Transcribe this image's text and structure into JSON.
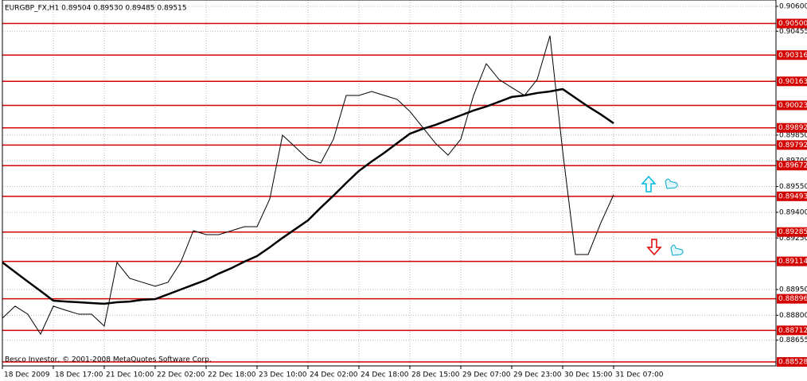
{
  "chart_data": {
    "type": "line",
    "title": "EURGBP_FX,H1  0.89504 0.89530 0.89485 0.89515",
    "copyright": "Besco Investor, © 2001-2008 MetaQuotes Software Corp.",
    "categories": [
      "18 Dec 2009",
      null,
      null,
      null,
      "18 Dec 17:00",
      null,
      null,
      null,
      "21 Dec 10:00",
      null,
      null,
      null,
      "22 Dec 02:00",
      null,
      null,
      null,
      "22 Dec 18:00",
      null,
      null,
      null,
      "23 Dec 10:00",
      null,
      null,
      null,
      "24 Dec 02:00",
      null,
      null,
      null,
      "24 Dec 18:00",
      null,
      null,
      null,
      "28 Dec 15:00",
      null,
      null,
      null,
      "29 Dec 07:00",
      null,
      null,
      null,
      "29 Dec 23:00",
      null,
      null,
      null,
      "30 Dec 15:00",
      null,
      null,
      null,
      "31 Dec 07:00"
    ],
    "series": [
      {
        "color": "#000000",
        "width": 1,
        "values": [
          0.88783,
          0.88853,
          0.88806,
          0.8869,
          0.88853,
          0.88829,
          0.88806,
          0.88806,
          0.88737,
          0.89108,
          0.89015,
          0.88992,
          0.88969,
          0.88992,
          0.89108,
          0.89293,
          0.8927,
          0.8927,
          0.89293,
          0.89316,
          0.89316,
          0.89478,
          0.89849,
          0.8978,
          0.8971,
          0.89687,
          0.89826,
          0.90081,
          0.90081,
          0.90104,
          0.90081,
          0.90058,
          0.89988,
          0.89896,
          0.89803,
          0.89733,
          0.89826,
          0.90081,
          0.90266,
          0.90174,
          0.90127,
          0.90081,
          0.90174,
          0.90429,
          0.89756,
          0.89154,
          0.89154,
          0.89339,
          0.89502
        ]
      },
      {
        "color": "#000000",
        "width": 2.5,
        "values": [
          0.89108,
          0.89052,
          0.88996,
          0.88941,
          0.88885,
          0.8888,
          0.88876,
          0.88871,
          0.88867,
          0.88876,
          0.8888,
          0.8889,
          0.88894,
          0.88922,
          0.8895,
          0.88978,
          0.89006,
          0.89043,
          0.89075,
          0.89112,
          0.89145,
          0.89196,
          0.89251,
          0.89302,
          0.89353,
          0.89427,
          0.89497,
          0.89571,
          0.89641,
          0.89696,
          0.89747,
          0.89803,
          0.89858,
          0.89886,
          0.89909,
          0.89937,
          0.89965,
          0.89993,
          0.90016,
          0.90044,
          0.90072,
          0.90081,
          0.90095,
          0.90104,
          0.90118,
          0.90067,
          0.90016,
          0.8997,
          0.89919
        ]
      }
    ],
    "ylim": [
      0.88505,
      0.90637
    ],
    "yticks": [
      {
        "value": 0.906,
        "label": "0.90600"
      },
      {
        "value": 0.90455,
        "label": "0.90455"
      },
      {
        "value": 0.8985,
        "label": "0.89850"
      },
      {
        "value": 0.897,
        "label": "0.89700"
      },
      {
        "value": 0.8955,
        "label": "0.89550"
      },
      {
        "value": 0.894,
        "label": "0.89400"
      },
      {
        "value": 0.8925,
        "label": "0.89250"
      },
      {
        "value": 0.8895,
        "label": "0.88950"
      },
      {
        "value": 0.888,
        "label": "0.88800"
      },
      {
        "value": 0.88655,
        "label": "0.88655"
      }
    ],
    "levels": [
      {
        "value": 0.905,
        "label": "0.90500"
      },
      {
        "value": 0.90316,
        "label": "0.90316"
      },
      {
        "value": 0.90163,
        "label": "0.90163"
      },
      {
        "value": 0.90023,
        "label": "0.90023"
      },
      {
        "value": 0.89892,
        "label": "0.89892"
      },
      {
        "value": 0.89792,
        "label": "0.89792"
      },
      {
        "value": 0.89672,
        "label": "0.89672"
      },
      {
        "value": 0.89493,
        "label": "0.89493"
      },
      {
        "value": 0.89285,
        "label": "0.89285"
      },
      {
        "value": 0.89114,
        "label": "0.89114"
      },
      {
        "value": 0.88896,
        "label": "0.88896"
      },
      {
        "value": 0.88712,
        "label": "0.88712"
      },
      {
        "value": 0.88528,
        "label": "0.88528"
      }
    ],
    "level_color": "#d40000",
    "grid": true
  }
}
